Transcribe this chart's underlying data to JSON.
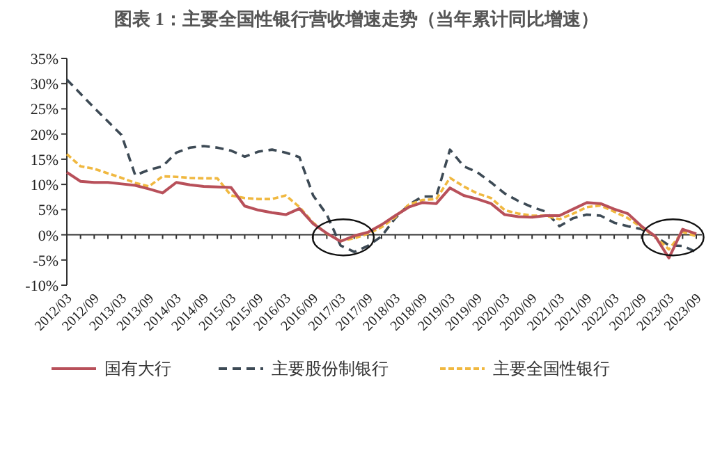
{
  "chart_data": {
    "type": "line",
    "title": "图表 1：主要全国性银行营收增速走势（当年累计同比增速）",
    "categories": [
      "2012/03",
      null,
      "2012/09",
      null,
      "2013/03",
      null,
      "2013/09",
      null,
      "2014/03",
      null,
      "2014/09",
      null,
      "2015/03",
      null,
      "2015/09",
      null,
      "2016/03",
      null,
      "2016/09",
      null,
      "2017/03",
      null,
      "2017/09",
      null,
      "2018/03",
      null,
      "2018/09",
      null,
      "2019/03",
      null,
      "2019/09",
      null,
      "2020/03",
      null,
      "2020/09",
      null,
      "2021/03",
      null,
      "2021/09",
      null,
      "2022/03",
      null,
      "2022/09",
      null,
      "2023/03",
      null,
      "2023/09"
    ],
    "series": [
      {
        "name": "国有大行",
        "color": "#b8505a",
        "line_style": "solid",
        "values": [
          12.4,
          10.6,
          10.4,
          10.4,
          10.1,
          9.8,
          9.1,
          8.3,
          10.4,
          9.9,
          9.6,
          9.5,
          9.4,
          5.7,
          4.9,
          4.4,
          4.0,
          5.2,
          2.2,
          0.3,
          -1.3,
          -0.2,
          0.5,
          2.0,
          3.8,
          5.5,
          6.4,
          6.2,
          9.3,
          7.8,
          7.1,
          6.2,
          4.0,
          3.6,
          3.5,
          3.8,
          3.8,
          5.1,
          6.4,
          6.2,
          5.1,
          4.2,
          1.7,
          -0.3,
          -4.6,
          1.1,
          0.2
        ]
      },
      {
        "name": "主要股份制银行",
        "color": "#3d4a55",
        "line_style": "dashed",
        "values": [
          30.8,
          28.0,
          25.2,
          22.5,
          19.8,
          11.8,
          12.9,
          13.6,
          16.3,
          17.3,
          17.6,
          17.3,
          16.7,
          15.5,
          16.5,
          16.9,
          16.3,
          15.4,
          7.8,
          4.0,
          -2.1,
          -3.4,
          -2.2,
          -0.3,
          3.3,
          6.0,
          7.6,
          7.6,
          16.9,
          13.6,
          12.4,
          10.4,
          8.2,
          6.7,
          5.5,
          4.6,
          1.7,
          3.3,
          4.0,
          3.8,
          2.4,
          1.7,
          1.1,
          -0.3,
          -2.1,
          -2.2,
          -3.4
        ]
      },
      {
        "name": "主要全国性银行",
        "color": "#f0b840",
        "line_style": "dashed",
        "values": [
          16.0,
          13.6,
          13.1,
          12.2,
          11.3,
          10.3,
          9.6,
          11.6,
          11.5,
          11.3,
          11.2,
          11.2,
          7.8,
          7.3,
          7.1,
          7.1,
          7.8,
          5.5,
          2.4,
          0.2,
          -1.2,
          -0.7,
          0.2,
          1.5,
          3.5,
          6.0,
          6.9,
          7.1,
          11.3,
          9.6,
          8.2,
          7.3,
          4.9,
          4.2,
          3.8,
          3.8,
          3.1,
          4.2,
          5.5,
          5.8,
          4.6,
          3.3,
          1.5,
          -0.4,
          -2.9,
          0.6,
          -0.3
        ]
      }
    ],
    "ylim": [
      -10,
      35
    ],
    "yticks": [
      {
        "value": -10,
        "label": "-10%"
      },
      {
        "value": -5,
        "label": "-5%"
      },
      {
        "value": 0,
        "label": "0%"
      },
      {
        "value": 5,
        "label": "5%"
      },
      {
        "value": 10,
        "label": "10%"
      },
      {
        "value": 15,
        "label": "15%"
      },
      {
        "value": 20,
        "label": "20%"
      },
      {
        "value": 25,
        "label": "25%"
      },
      {
        "value": 30,
        "label": "30%"
      },
      {
        "value": 35,
        "label": "35%"
      }
    ],
    "legend": "bottom",
    "marker": "none"
  }
}
